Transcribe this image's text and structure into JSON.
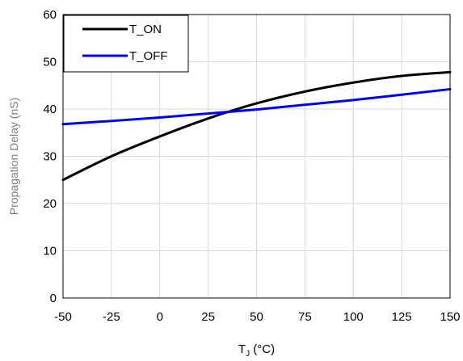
{
  "chart_data": {
    "type": "line",
    "title": "",
    "xlabel": "T",
    "xlabel_subscript": "J",
    "xlabel_unit": " (°C)",
    "ylabel": "Propagation Delay (nS)",
    "xlim": [
      -50,
      150
    ],
    "ylim": [
      0,
      60
    ],
    "x_ticks": [
      -50,
      -25,
      0,
      25,
      50,
      75,
      100,
      125,
      150
    ],
    "y_ticks": [
      0,
      10,
      20,
      30,
      40,
      50,
      60
    ],
    "grid": true,
    "legend_position": "top-left",
    "series": [
      {
        "name": "T_ON",
        "color": "#000000",
        "x": [
          -50,
          -25,
          0,
          25,
          50,
          75,
          100,
          125,
          150
        ],
        "y": [
          25.0,
          30.0,
          34.2,
          38.0,
          41.2,
          43.7,
          45.6,
          47.0,
          47.8
        ]
      },
      {
        "name": "T_OFF",
        "color": "#0000ff",
        "x": [
          -50,
          0,
          50,
          100,
          150
        ],
        "y": [
          36.8,
          38.2,
          39.9,
          41.9,
          44.2
        ]
      }
    ]
  }
}
